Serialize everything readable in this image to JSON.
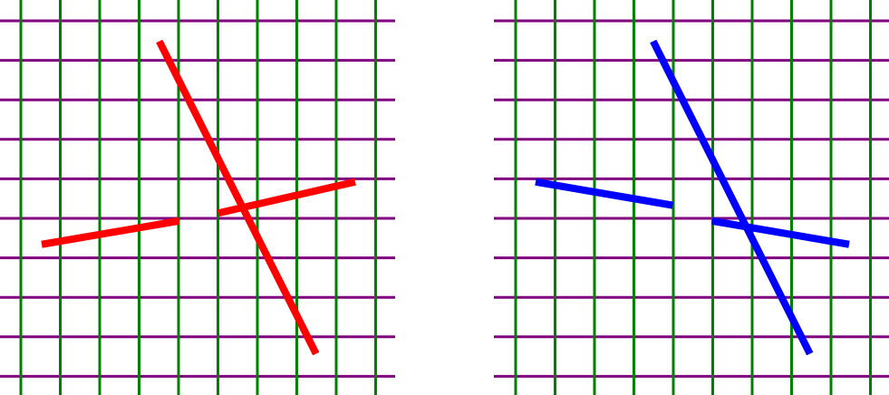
{
  "colors": {
    "background": "#ffffff",
    "horizontal_grid": "#800080",
    "vertical_grid": "#008000",
    "left_lines": "#ff0000",
    "right_lines": "#0000ff"
  },
  "panels": [
    {
      "name": "left-grid-panel",
      "line_color_key": "left_lines",
      "segments": [
        {
          "name": "steep-line",
          "x1": 3,
          "y1": 10,
          "x2": 7,
          "y2": -10
        },
        {
          "name": "lower-left-segment",
          "x1": 0,
          "y1": -3,
          "x2": 3.5,
          "y2": -1.5
        },
        {
          "name": "upper-right-segment",
          "x1": 4.5,
          "y1": -1,
          "x2": 8,
          "y2": 1
        }
      ]
    },
    {
      "name": "right-grid-panel",
      "line_color_key": "right_lines",
      "segments": [
        {
          "name": "steep-line",
          "x1": 3,
          "y1": 10,
          "x2": 7,
          "y2": -10
        },
        {
          "name": "upper-left-segment",
          "x1": 0,
          "y1": 1,
          "x2": 3.5,
          "y2": -0.5
        },
        {
          "name": "lower-right-segment",
          "x1": 4.5,
          "y1": -1.5,
          "x2": 8,
          "y2": -3
        }
      ]
    }
  ]
}
